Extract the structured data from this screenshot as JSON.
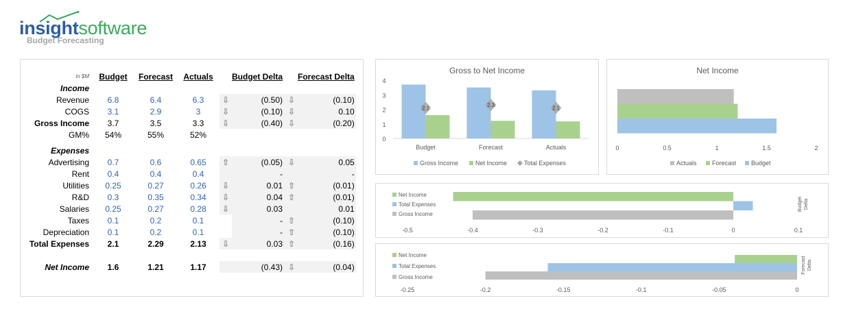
{
  "logo": {
    "brand_part1": "insight",
    "brand_part2": "software",
    "subtitle": "Budget Forecasting"
  },
  "table": {
    "unit_label": "in $M",
    "headers": {
      "budget": "Budget",
      "forecast": "Forecast",
      "actuals": "Actuals",
      "budget_delta": "Budget Delta",
      "forecast_delta": "Forecast Delta"
    },
    "income_section": "Income",
    "expenses_section": "Expenses",
    "rows": {
      "revenue": {
        "label": "Revenue",
        "budget": "6.8",
        "forecast": "6.4",
        "actuals": "6.3",
        "budget_delta": "(0.50)",
        "forecast_delta": "(0.10)"
      },
      "cogs": {
        "label": "COGS",
        "budget": "3.1",
        "forecast": "2.9",
        "actuals": "3",
        "budget_delta": "(0.10)",
        "forecast_delta": "0.10"
      },
      "gross_income": {
        "label": "Gross Income",
        "budget": "3.7",
        "forecast": "3.5",
        "actuals": "3.3",
        "budget_delta": "(0.40)",
        "forecast_delta": "(0.20)"
      },
      "gm": {
        "label": "GM%",
        "budget": "54%",
        "forecast": "55%",
        "actuals": "52%"
      },
      "advertising": {
        "label": "Advertising",
        "budget": "0.7",
        "forecast": "0.6",
        "actuals": "0.65",
        "budget_delta": "(0.05)",
        "forecast_delta": "0.05"
      },
      "rent": {
        "label": "Rent",
        "budget": "0.4",
        "forecast": "0.4",
        "actuals": "0.4",
        "budget_delta": "-",
        "forecast_delta": "-"
      },
      "utilities": {
        "label": "Utilities",
        "budget": "0.25",
        "forecast": "0.27",
        "actuals": "0.26",
        "budget_delta": "0.01",
        "forecast_delta": "(0.01)"
      },
      "rd": {
        "label": "R&D",
        "budget": "0.3",
        "forecast": "0.35",
        "actuals": "0.34",
        "budget_delta": "0.04",
        "forecast_delta": "(0.01)"
      },
      "salaries": {
        "label": "Salaries",
        "budget": "0.25",
        "forecast": "0.27",
        "actuals": "0.28",
        "budget_delta": "0.03",
        "forecast_delta": "0.01"
      },
      "taxes": {
        "label": "Taxes",
        "budget": "0.1",
        "forecast": "0.2",
        "actuals": "0.1",
        "budget_delta": "-",
        "forecast_delta": "(0.10)"
      },
      "depreciation": {
        "label": "Depreciation",
        "budget": "0.1",
        "forecast": "0.2",
        "actuals": "0.1",
        "budget_delta": "-",
        "forecast_delta": "(0.10)"
      },
      "total_expenses": {
        "label": "Total Expenses",
        "budget": "2.1",
        "forecast": "2.29",
        "actuals": "2.13",
        "budget_delta": "0.03",
        "forecast_delta": "(0.16)"
      },
      "net_income": {
        "label": "Net Income",
        "budget": "1.6",
        "forecast": "1.21",
        "actuals": "1.17",
        "budget_delta": "(0.43)",
        "forecast_delta": "(0.04)"
      }
    }
  },
  "colors": {
    "blue": "#9dc3e6",
    "green": "#a9d18e",
    "gray": "#bfbfbf",
    "diamond": "#a6a6a6",
    "number_blue": "#2f63b4"
  },
  "chart_data": [
    {
      "type": "bar",
      "title": "Gross to Net Income",
      "categories": [
        "Budget",
        "Forecast",
        "Actuals"
      ],
      "series": [
        {
          "name": "Gross Income",
          "values": [
            3.7,
            3.5,
            3.3
          ]
        },
        {
          "name": "Net Income",
          "values": [
            1.6,
            1.21,
            1.17
          ]
        },
        {
          "name": "Total Expenses",
          "values": [
            2.1,
            2.3,
            2.1
          ],
          "marker": "diamond",
          "labels": [
            "2.1",
            "2.3",
            "2.1"
          ]
        }
      ],
      "ylim": [
        0,
        4
      ],
      "yticks": [
        "0",
        "1",
        "2",
        "3",
        "4"
      ],
      "legend": "bottom"
    },
    {
      "type": "bar",
      "orientation": "horizontal",
      "title": "Net Income",
      "series": [
        {
          "name": "Actuals",
          "values": [
            1.17
          ]
        },
        {
          "name": "Forecast",
          "values": [
            1.21
          ]
        },
        {
          "name": "Budget",
          "values": [
            1.6
          ]
        }
      ],
      "xlim": [
        0,
        2
      ],
      "xticks": [
        "0",
        "0.5",
        "1",
        "1.5",
        "2"
      ],
      "legend": "bottom"
    },
    {
      "type": "bar",
      "orientation": "horizontal",
      "side_label": "Budget Delta",
      "series": [
        {
          "name": "Net Income",
          "values": [
            -0.43
          ]
        },
        {
          "name": "Total Expenses",
          "values": [
            0.03
          ]
        },
        {
          "name": "Gross Income",
          "values": [
            -0.4
          ]
        }
      ],
      "xlim": [
        -0.5,
        0.1
      ],
      "xticks": [
        "-0.5",
        "-0.4",
        "-0.3",
        "-0.2",
        "-0.1",
        "0",
        "0.1"
      ],
      "legend": "top-left"
    },
    {
      "type": "bar",
      "orientation": "horizontal",
      "side_label": "Forecast Delta",
      "series": [
        {
          "name": "Net Income",
          "values": [
            -0.04
          ]
        },
        {
          "name": "Total Expenses",
          "values": [
            -0.16
          ]
        },
        {
          "name": "Gross Income",
          "values": [
            -0.2
          ]
        }
      ],
      "xlim": [
        -0.25,
        0
      ],
      "xticks": [
        "-0.25",
        "-0.2",
        "-0.15",
        "-0.1",
        "-0.05",
        "0"
      ],
      "legend": "top-left"
    }
  ]
}
